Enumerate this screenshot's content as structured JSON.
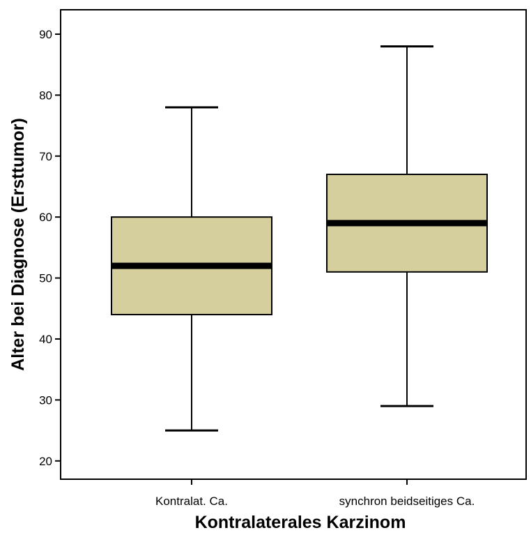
{
  "chart_data": {
    "type": "boxplot",
    "title": "",
    "xlabel": "Kontralaterales Karzinom",
    "ylabel": "Alter bei Diagnose (Ersttumor)",
    "ylim": [
      17,
      94
    ],
    "yticks": [
      20,
      30,
      40,
      50,
      60,
      70,
      80,
      90
    ],
    "categories": [
      "Kontralat. Ca.",
      "synchron beidseitiges Ca."
    ],
    "boxes": [
      {
        "min": 25,
        "q1": 44,
        "median": 52,
        "q3": 60,
        "max": 78
      },
      {
        "min": 29,
        "q1": 51,
        "median": 59,
        "q3": 67,
        "max": 88
      }
    ],
    "grid": false,
    "colors": {
      "box_fill": "#d4cf9d",
      "stroke": "#000000"
    }
  }
}
